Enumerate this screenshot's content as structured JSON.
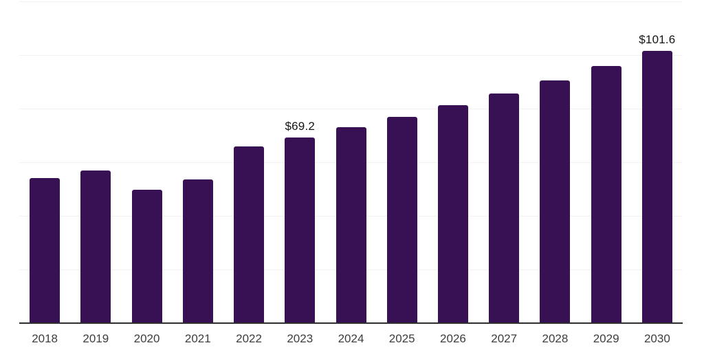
{
  "chart_data": {
    "type": "bar",
    "title": "",
    "xlabel": "",
    "ylabel": "",
    "categories": [
      "2018",
      "2019",
      "2020",
      "2021",
      "2022",
      "2023",
      "2024",
      "2025",
      "2026",
      "2027",
      "2028",
      "2029",
      "2030"
    ],
    "values": [
      54.0,
      56.8,
      49.7,
      53.5,
      65.8,
      69.2,
      73.0,
      77.0,
      81.2,
      85.6,
      90.4,
      96.0,
      101.6
    ],
    "labeled_bars": [
      {
        "category": "2023",
        "label": "$69.2"
      },
      {
        "category": "2030",
        "label": "$101.6"
      }
    ],
    "ylim": [
      0,
      120
    ],
    "gridline_step": 20,
    "grid": "horizontal-only",
    "y_tick_labels_visible": false,
    "legend": "none",
    "colors": {
      "bar": "#371153",
      "gridline": "#f2f2f2",
      "axis_line": "#2e2e2e",
      "tick_label": "#3d3d3d",
      "value_label": "#141414",
      "background": "#ffffff"
    }
  }
}
